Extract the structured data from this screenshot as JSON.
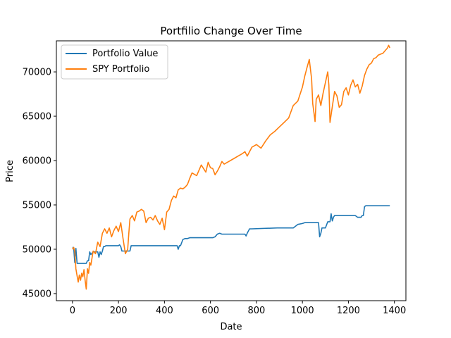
{
  "chart_data": {
    "type": "line",
    "title": "Portfilio Change Over Time",
    "xlabel": "Date",
    "ylabel": "Price",
    "xlim": [
      -70,
      1450
    ],
    "ylim": [
      44200,
      73500
    ],
    "xticks": [
      0,
      200,
      400,
      600,
      800,
      1000,
      1200,
      1400
    ],
    "yticks": [
      45000,
      50000,
      55000,
      60000,
      65000,
      70000
    ],
    "grid": false,
    "legend_position": "top-left",
    "series": [
      {
        "name": "Portfolio Value",
        "color": "#1f77b4",
        "x": [
          0,
          5,
          10,
          15,
          20,
          25,
          30,
          60,
          65,
          70,
          75,
          80,
          90,
          100,
          110,
          115,
          120,
          125,
          130,
          135,
          140,
          145,
          150,
          200,
          205,
          210,
          215,
          250,
          255,
          260,
          450,
          455,
          460,
          465,
          470,
          480,
          490,
          500,
          510,
          600,
          610,
          620,
          630,
          640,
          650,
          700,
          750,
          755,
          760,
          770,
          780,
          890,
          950,
          960,
          980,
          1000,
          1010,
          1040,
          1050,
          1070,
          1075,
          1080,
          1085,
          1095,
          1100,
          1110,
          1120,
          1125,
          1130,
          1135,
          1140,
          1150,
          1160,
          1200,
          1230,
          1240,
          1250,
          1255,
          1260,
          1265,
          1270,
          1275,
          1280,
          1300,
          1350,
          1360,
          1380
        ],
        "values": [
          50200,
          50200,
          48500,
          50100,
          48400,
          48400,
          48400,
          48400,
          48700,
          48700,
          49700,
          49400,
          49700,
          49700,
          49700,
          49100,
          49700,
          49400,
          49800,
          50300,
          50300,
          50400,
          50400,
          50400,
          50500,
          50300,
          49800,
          49800,
          50400,
          50400,
          50400,
          50400,
          50000,
          50400,
          50400,
          51100,
          51200,
          51200,
          51300,
          51300,
          51300,
          51400,
          51700,
          51800,
          51700,
          51700,
          51700,
          51500,
          51800,
          52300,
          52300,
          52400,
          52400,
          52400,
          52800,
          52900,
          53000,
          53000,
          53000,
          53000,
          51400,
          51800,
          52400,
          52400,
          52400,
          53100,
          53100,
          54000,
          53200,
          53600,
          53800,
          53800,
          53800,
          53800,
          53800,
          53600,
          53600,
          53600,
          53800,
          53800,
          54800,
          54900,
          54900,
          54900,
          54900,
          54900,
          54900
        ]
      },
      {
        "name": "SPY Portfolio",
        "color": "#ff7f0e",
        "x": [
          0,
          5,
          10,
          15,
          20,
          25,
          30,
          35,
          40,
          45,
          50,
          55,
          60,
          65,
          70,
          75,
          80,
          90,
          100,
          110,
          120,
          130,
          140,
          150,
          160,
          170,
          180,
          190,
          200,
          210,
          220,
          230,
          240,
          245,
          250,
          260,
          270,
          280,
          290,
          300,
          310,
          320,
          330,
          340,
          350,
          360,
          370,
          380,
          390,
          400,
          410,
          420,
          430,
          440,
          450,
          460,
          470,
          480,
          490,
          500,
          510,
          520,
          540,
          560,
          580,
          590,
          600,
          610,
          620,
          630,
          640,
          650,
          660,
          680,
          700,
          720,
          740,
          750,
          760,
          780,
          800,
          820,
          840,
          860,
          880,
          900,
          920,
          940,
          960,
          980,
          1000,
          1010,
          1020,
          1030,
          1040,
          1045,
          1050,
          1055,
          1060,
          1070,
          1080,
          1090,
          1100,
          1110,
          1115,
          1120,
          1130,
          1140,
          1150,
          1160,
          1170,
          1180,
          1190,
          1200,
          1210,
          1220,
          1230,
          1240,
          1250,
          1260,
          1270,
          1280,
          1290,
          1300,
          1310,
          1320,
          1330,
          1340,
          1350,
          1360,
          1370,
          1375,
          1380
        ],
        "values": [
          50000,
          50200,
          49800,
          47800,
          47000,
          46300,
          47100,
          46500,
          47300,
          46900,
          47700,
          46500,
          45500,
          47800,
          47300,
          48500,
          48200,
          49800,
          49500,
          50800,
          50300,
          51800,
          52300,
          51800,
          52400,
          51400,
          52100,
          52600,
          52000,
          53000,
          51200,
          49500,
          50000,
          51800,
          53400,
          53800,
          53200,
          54200,
          54300,
          54500,
          54300,
          53000,
          53500,
          53600,
          53300,
          53800,
          53200,
          52800,
          53500,
          52200,
          54200,
          54500,
          55500,
          56000,
          55800,
          56700,
          56900,
          56800,
          57000,
          57300,
          58000,
          58600,
          58300,
          59500,
          58700,
          59800,
          59200,
          59100,
          58400,
          58800,
          59300,
          59900,
          59600,
          59900,
          60200,
          60500,
          60800,
          61000,
          60500,
          61500,
          61800,
          61400,
          62200,
          62900,
          63300,
          63800,
          64300,
          64800,
          66200,
          66700,
          68300,
          69500,
          70500,
          71400,
          69200,
          66400,
          65400,
          64400,
          66900,
          67400,
          66200,
          67600,
          68800,
          70000,
          68500,
          64300,
          66100,
          67800,
          67300,
          66000,
          66300,
          67800,
          68200,
          67400,
          68500,
          69100,
          68300,
          68600,
          67600,
          68400,
          69600,
          70300,
          70800,
          71000,
          71500,
          71600,
          71900,
          72000,
          72100,
          72400,
          72700,
          73000,
          72700
        ]
      }
    ]
  }
}
